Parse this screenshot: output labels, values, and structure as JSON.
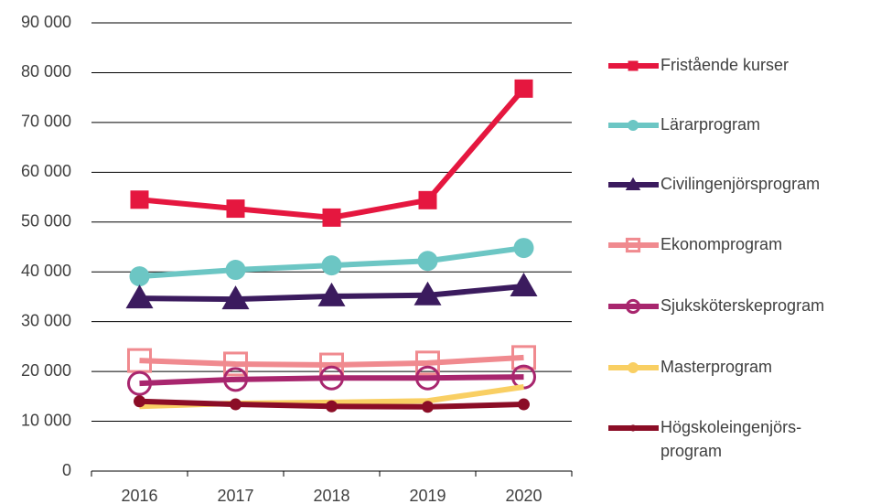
{
  "chart_data": {
    "type": "line",
    "categories": [
      "2016",
      "2017",
      "2018",
      "2019",
      "2020"
    ],
    "ylim": [
      0,
      90000
    ],
    "yticks": [
      0,
      {
        "value": 10000,
        "label": "10 000"
      },
      {
        "value": 20000,
        "label": "20 000"
      },
      {
        "value": 30000,
        "label": "30 000"
      },
      {
        "value": 40000,
        "label": "40 000"
      },
      {
        "value": 50000,
        "label": "50 000"
      },
      {
        "value": 60000,
        "label": "60 000"
      },
      {
        "value": 70000,
        "label": "70 000"
      },
      {
        "value": 80000,
        "label": "80 000"
      },
      {
        "value": 90000,
        "label": "90 000"
      }
    ],
    "grid": true,
    "legend": "right",
    "series": [
      {
        "name": "Fristående kurser",
        "color": "#e5173f",
        "marker": "square",
        "values": [
          54500,
          52700,
          50900,
          54400,
          76800
        ]
      },
      {
        "name": "Lärarprogram",
        "color": "#6cc6c4",
        "marker": "circle",
        "values": [
          39100,
          40400,
          41300,
          42200,
          44800
        ]
      },
      {
        "name": "Civilingenjörsprogram",
        "color": "#3b1b5e",
        "marker": "triangle",
        "values": [
          34700,
          34500,
          35100,
          35300,
          37100
        ]
      },
      {
        "name": "Ekonomprogram",
        "color": "#f08a8f",
        "marker": "hollow-square",
        "values": [
          22200,
          21500,
          21300,
          21700,
          22800
        ]
      },
      {
        "name": "Sjuksköterskeprogram",
        "color": "#a8266e",
        "marker": "hollow-circle",
        "values": [
          17600,
          18400,
          18700,
          18700,
          18900
        ]
      },
      {
        "name": "Masterprogram",
        "color": "#f9cf63",
        "marker": "none",
        "values": [
          13000,
          13600,
          13800,
          14100,
          16900
        ]
      },
      {
        "name": "Högskoleingenjörs-\nprogram",
        "color": "#8b0d26",
        "marker": "small-circle",
        "values": [
          14000,
          13400,
          13000,
          12900,
          13400
        ]
      }
    ]
  }
}
